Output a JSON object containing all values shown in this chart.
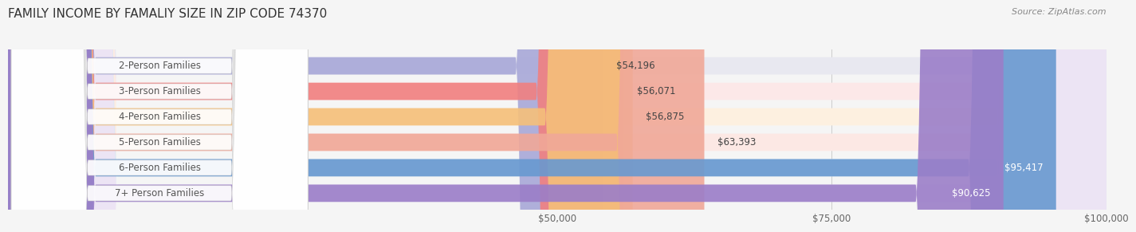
{
  "title": "FAMILY INCOME BY FAMALIY SIZE IN ZIP CODE 74370",
  "source": "Source: ZipAtlas.com",
  "categories": [
    "2-Person Families",
    "3-Person Families",
    "4-Person Families",
    "5-Person Families",
    "6-Person Families",
    "7+ Person Families"
  ],
  "values": [
    54196,
    56071,
    56875,
    63393,
    95417,
    90625
  ],
  "bar_colors": [
    "#a8a8d8",
    "#f08080",
    "#f5c07a",
    "#f0a898",
    "#6899d0",
    "#9b7ec8"
  ],
  "bar_bg_colors": [
    "#e8e8f0",
    "#fce8e8",
    "#fdf0e0",
    "#fce8e4",
    "#dce8f4",
    "#ece4f4"
  ],
  "value_labels": [
    "$54,196",
    "$56,071",
    "$56,875",
    "$63,393",
    "$95,417",
    "$90,625"
  ],
  "label_inside": [
    false,
    false,
    false,
    false,
    true,
    true
  ],
  "xlim": [
    0,
    100000
  ],
  "xtick_positions": [
    25000,
    50000,
    75000,
    100000
  ],
  "xtick_labels": [
    "",
    "$50,000",
    "$75,000",
    "$100,000"
  ],
  "background_color": "#f5f5f5",
  "bar_height": 0.68
}
